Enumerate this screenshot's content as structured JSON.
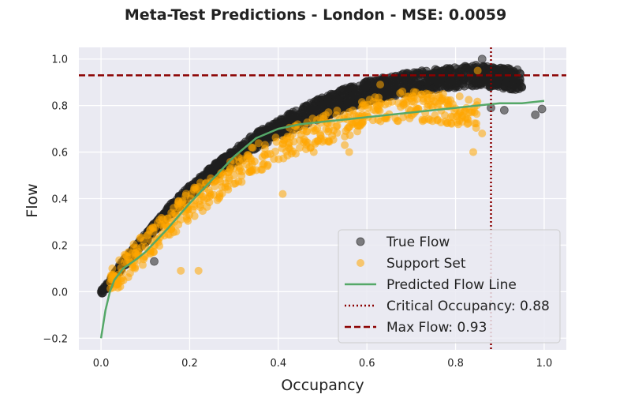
{
  "chart_data": {
    "type": "scatter",
    "title": "Meta-Test Predictions - London - MSE: 0.0059",
    "xlabel": "Occupancy",
    "ylabel": "Flow",
    "xlim": [
      -0.05,
      1.05
    ],
    "ylim": [
      -0.25,
      1.05
    ],
    "xticks": [
      0.0,
      0.2,
      0.4,
      0.6,
      0.8,
      1.0
    ],
    "xtick_labels": [
      "0.0",
      "0.2",
      "0.4",
      "0.6",
      "0.8",
      "1.0"
    ],
    "yticks": [
      -0.2,
      0.0,
      0.2,
      0.4,
      0.6,
      0.8,
      1.0
    ],
    "ytick_labels": [
      "−0.2",
      "0.0",
      "0.2",
      "0.4",
      "0.6",
      "0.8",
      "1.0"
    ],
    "grid": true,
    "legend_position": "lower-right",
    "colors": {
      "background": "#eaeaf2",
      "true_flow": "#1f1f1f",
      "support_set": "#ffa500",
      "predicted_line": "#55a868",
      "critical_line": "#8b0000",
      "max_flow_line": "#8b0000"
    },
    "series": [
      {
        "name": "True Flow",
        "kind": "scatter",
        "description_curve": [
          [
            0.0,
            0.0
          ],
          [
            0.02,
            0.04
          ],
          [
            0.05,
            0.12
          ],
          [
            0.1,
            0.23
          ],
          [
            0.15,
            0.34
          ],
          [
            0.2,
            0.43
          ],
          [
            0.25,
            0.51
          ],
          [
            0.3,
            0.58
          ],
          [
            0.35,
            0.65
          ],
          [
            0.4,
            0.7
          ],
          [
            0.45,
            0.75
          ],
          [
            0.5,
            0.79
          ],
          [
            0.55,
            0.83
          ],
          [
            0.6,
            0.86
          ],
          [
            0.65,
            0.88
          ],
          [
            0.7,
            0.9
          ],
          [
            0.75,
            0.91
          ],
          [
            0.8,
            0.92
          ],
          [
            0.85,
            0.93
          ],
          [
            0.9,
            0.92
          ],
          [
            0.95,
            0.91
          ]
        ],
        "outliers": [
          [
            0.12,
            0.13
          ],
          [
            0.88,
            0.79
          ],
          [
            0.91,
            0.78
          ],
          [
            0.98,
            0.76
          ],
          [
            0.995,
            0.785
          ],
          [
            0.86,
            1.0
          ],
          [
            0.9,
            0.96
          ]
        ]
      },
      {
        "name": "Support Set",
        "kind": "scatter",
        "description_curve": [
          [
            0.02,
            0.04
          ],
          [
            0.05,
            0.1
          ],
          [
            0.1,
            0.19
          ],
          [
            0.15,
            0.29
          ],
          [
            0.2,
            0.37
          ],
          [
            0.25,
            0.44
          ],
          [
            0.3,
            0.51
          ],
          [
            0.35,
            0.57
          ],
          [
            0.4,
            0.62
          ],
          [
            0.45,
            0.66
          ],
          [
            0.5,
            0.7
          ],
          [
            0.55,
            0.73
          ],
          [
            0.6,
            0.76
          ],
          [
            0.65,
            0.79
          ],
          [
            0.7,
            0.8
          ],
          [
            0.75,
            0.79
          ],
          [
            0.8,
            0.78
          ],
          [
            0.85,
            0.76
          ]
        ],
        "outliers": [
          [
            0.18,
            0.09
          ],
          [
            0.22,
            0.09
          ],
          [
            0.12,
            0.2
          ],
          [
            0.41,
            0.42
          ],
          [
            0.56,
            0.6
          ],
          [
            0.84,
            0.6
          ],
          [
            0.86,
            0.68
          ],
          [
            0.63,
            0.89
          ],
          [
            0.85,
            0.95
          ],
          [
            0.55,
            0.63
          ],
          [
            0.48,
            0.6
          ]
        ]
      },
      {
        "name": "Predicted Flow Line",
        "kind": "line",
        "x": [
          0.0,
          0.01,
          0.02,
          0.03,
          0.05,
          0.08,
          0.1,
          0.15,
          0.2,
          0.25,
          0.3,
          0.35,
          0.4,
          0.45,
          0.5,
          0.55,
          0.6,
          0.65,
          0.7,
          0.75,
          0.8,
          0.85,
          0.9,
          0.95,
          1.0
        ],
        "y": [
          -0.2,
          -0.08,
          0.0,
          0.05,
          0.1,
          0.14,
          0.17,
          0.27,
          0.38,
          0.48,
          0.58,
          0.66,
          0.7,
          0.72,
          0.73,
          0.74,
          0.75,
          0.76,
          0.77,
          0.78,
          0.79,
          0.8,
          0.81,
          0.81,
          0.82
        ]
      },
      {
        "name": "Critical Occupancy: 0.88",
        "kind": "vline",
        "value": 0.88
      },
      {
        "name": "Max Flow: 0.93",
        "kind": "hline",
        "value": 0.93
      }
    ]
  }
}
